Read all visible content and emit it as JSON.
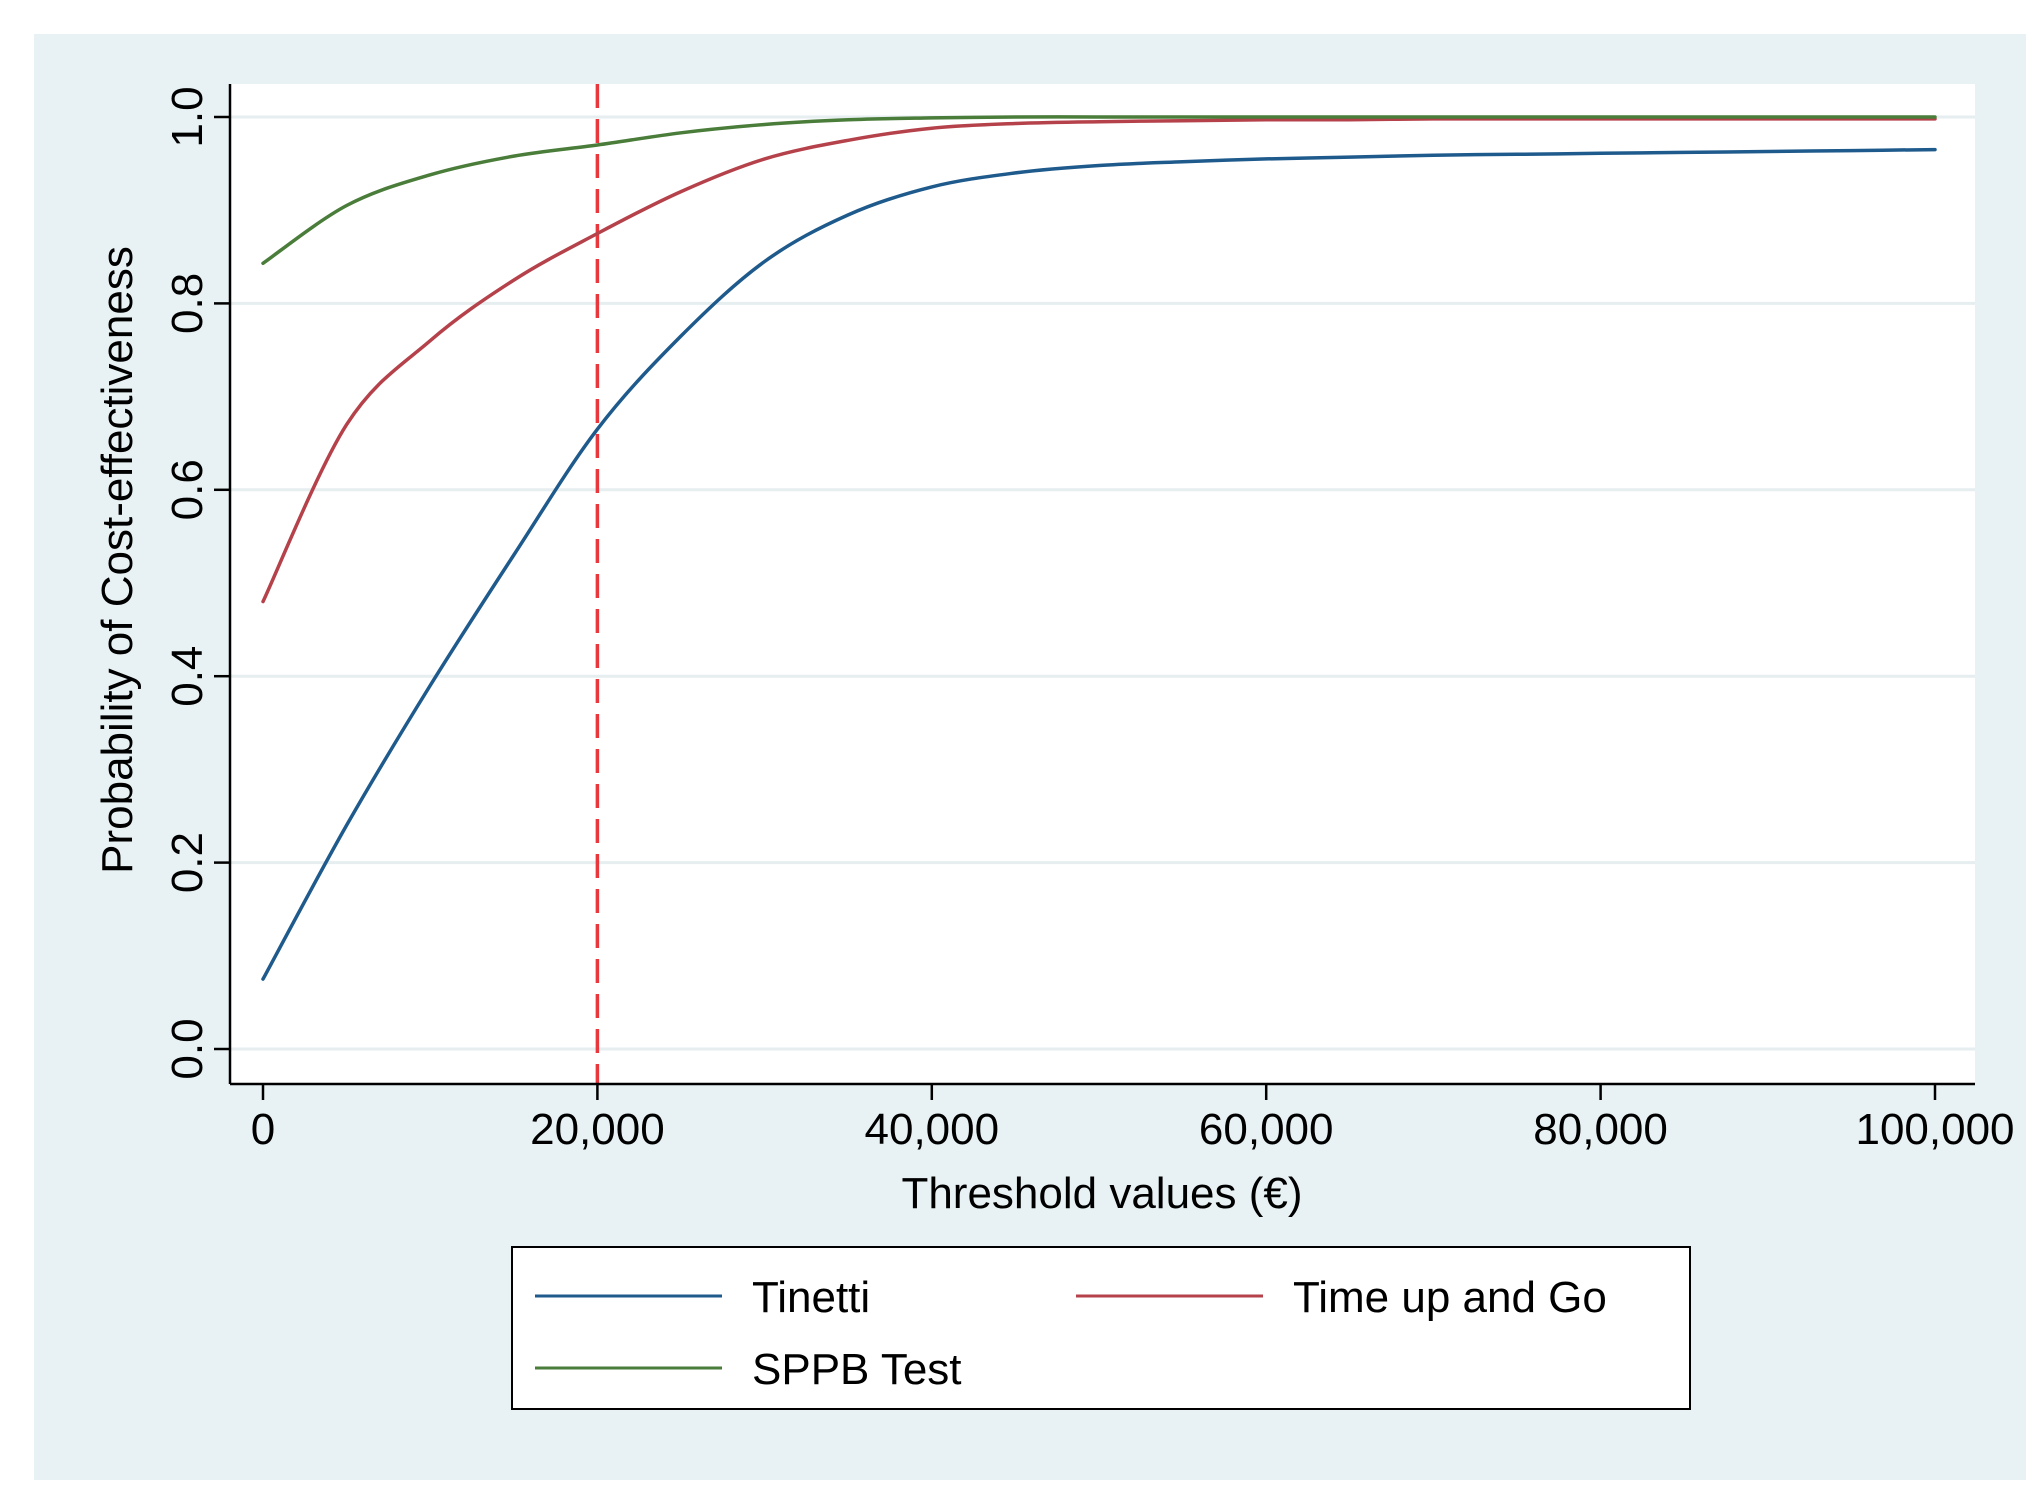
{
  "chart_data": {
    "type": "line",
    "title": "",
    "xlabel": "Threshold values (€)",
    "ylabel": "Probability of Cost-effectiveness",
    "xlim": [
      0,
      100000
    ],
    "ylim": [
      0,
      1
    ],
    "x_ticks": [
      0,
      20000,
      40000,
      60000,
      80000,
      100000
    ],
    "x_tick_labels": [
      "0",
      "20,000",
      "40,000",
      "60,000",
      "80,000",
      "100,000"
    ],
    "y_ticks": [
      0,
      0.2,
      0.4,
      0.6,
      0.8,
      1.0
    ],
    "y_tick_labels": [
      "0.0",
      "0.2",
      "0.4",
      "0.6",
      "0.8",
      "1.0"
    ],
    "grid": "horizontal",
    "legend_position": "bottom",
    "reference_line": {
      "x": 20000,
      "color": "#e8383d",
      "style": "dashed"
    },
    "x": [
      0,
      5000,
      10000,
      15000,
      20000,
      25000,
      30000,
      35000,
      40000,
      45000,
      50000,
      55000,
      60000,
      65000,
      70000,
      75000,
      80000,
      85000,
      90000,
      95000,
      100000
    ],
    "series": [
      {
        "name": "Tinetti",
        "color": "#1f5a8c",
        "values": [
          0.075,
          0.24,
          0.39,
          0.53,
          0.665,
          0.765,
          0.845,
          0.895,
          0.925,
          0.94,
          0.948,
          0.952,
          0.955,
          0.957,
          0.959,
          0.96,
          0.961,
          0.962,
          0.963,
          0.964,
          0.965
        ]
      },
      {
        "name": "Time up and Go",
        "color": "#b5424a",
        "values": [
          0.48,
          0.67,
          0.76,
          0.825,
          0.875,
          0.92,
          0.955,
          0.975,
          0.988,
          0.993,
          0.995,
          0.996,
          0.997,
          0.997,
          0.998,
          0.998,
          0.998,
          0.998,
          0.998,
          0.998,
          0.998
        ]
      },
      {
        "name": "SPPB Test",
        "color": "#4a7c3a",
        "values": [
          0.843,
          0.905,
          0.938,
          0.958,
          0.97,
          0.983,
          0.992,
          0.997,
          0.999,
          1.0,
          1.0,
          1.0,
          1.0,
          1.0,
          1.0,
          1.0,
          1.0,
          1.0,
          1.0,
          1.0,
          1.0
        ]
      }
    ],
    "colors": {
      "outer_background": "#e8f2f4",
      "plot_background": "#ffffff",
      "gridline": "#e6eef0"
    }
  }
}
